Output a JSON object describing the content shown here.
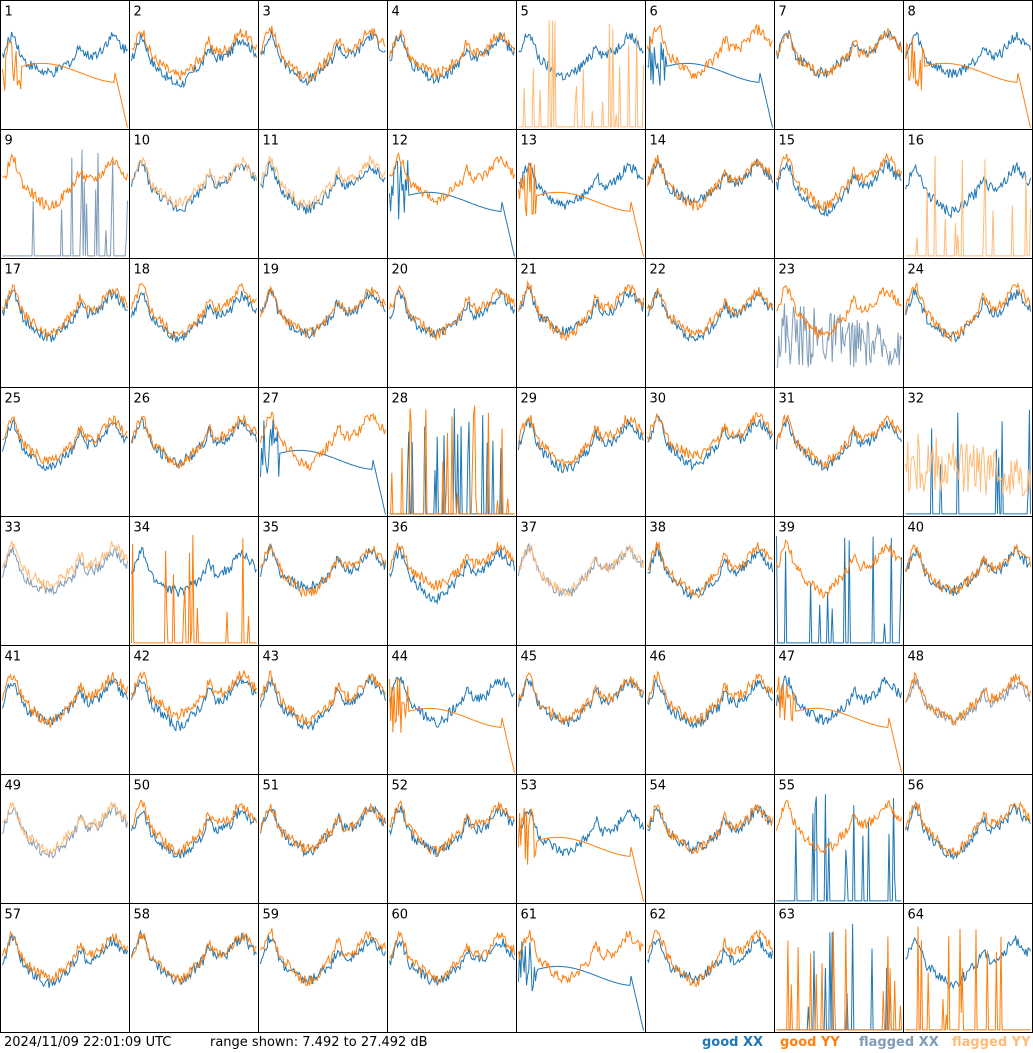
{
  "footer": {
    "timestamp": "2024/11/09 22:01:09 UTC",
    "range_text": "range shown: 7.492 to 27.492 dB"
  },
  "legend": {
    "good_xx": "good XX",
    "good_yy": "good YY",
    "flagged_xx": "flagged XX",
    "flagged_yy": "flagged YY"
  },
  "colors": {
    "good_xx": "#1f77b4",
    "good_yy": "#ff7f0e",
    "flagged_xx": "#7f9cb8",
    "flagged_yy": "#ffbb78"
  },
  "chart_data": {
    "type": "line",
    "grid": "8x8 small multiples",
    "y_range_db": [
      7.492,
      27.492
    ],
    "panels": [
      {
        "id": 1,
        "xx": "good",
        "yy": "good",
        "xx_shape": "normal",
        "yy_shape": "dropout"
      },
      {
        "id": 2,
        "xx": "good",
        "yy": "good",
        "xx_shape": "normal",
        "yy_shape": "normal"
      },
      {
        "id": 3,
        "xx": "good",
        "yy": "good",
        "xx_shape": "normal",
        "yy_shape": "normal"
      },
      {
        "id": 4,
        "xx": "good",
        "yy": "good",
        "xx_shape": "normal",
        "yy_shape": "normal"
      },
      {
        "id": 5,
        "xx": "good",
        "yy": "flagged",
        "xx_shape": "normal",
        "yy_shape": "spikes"
      },
      {
        "id": 6,
        "xx": "good",
        "yy": "good",
        "xx_shape": "dropout",
        "yy_shape": "normal"
      },
      {
        "id": 7,
        "xx": "good",
        "yy": "good",
        "xx_shape": "normal",
        "yy_shape": "normal"
      },
      {
        "id": 8,
        "xx": "good",
        "yy": "good",
        "xx_shape": "normal",
        "yy_shape": "dropout"
      },
      {
        "id": 9,
        "xx": "flagged",
        "yy": "good",
        "xx_shape": "spikes",
        "yy_shape": "normal"
      },
      {
        "id": 10,
        "xx": "good",
        "yy": "flagged",
        "xx_shape": "normal",
        "yy_shape": "normal"
      },
      {
        "id": 11,
        "xx": "good",
        "yy": "flagged",
        "xx_shape": "normal",
        "yy_shape": "normal"
      },
      {
        "id": 12,
        "xx": "good",
        "yy": "good",
        "xx_shape": "dropout",
        "yy_shape": "normal"
      },
      {
        "id": 13,
        "xx": "good",
        "yy": "good",
        "xx_shape": "normal",
        "yy_shape": "dropout"
      },
      {
        "id": 14,
        "xx": "good",
        "yy": "good",
        "xx_shape": "normal",
        "yy_shape": "normal"
      },
      {
        "id": 15,
        "xx": "good",
        "yy": "good",
        "xx_shape": "normal",
        "yy_shape": "normal"
      },
      {
        "id": 16,
        "xx": "good",
        "yy": "flagged",
        "xx_shape": "normal",
        "yy_shape": "spikes"
      },
      {
        "id": 17,
        "xx": "good",
        "yy": "good",
        "xx_shape": "normal",
        "yy_shape": "normal"
      },
      {
        "id": 18,
        "xx": "good",
        "yy": "good",
        "xx_shape": "normal",
        "yy_shape": "normal"
      },
      {
        "id": 19,
        "xx": "good",
        "yy": "good",
        "xx_shape": "normal",
        "yy_shape": "normal"
      },
      {
        "id": 20,
        "xx": "good",
        "yy": "good",
        "xx_shape": "normal",
        "yy_shape": "normal"
      },
      {
        "id": 21,
        "xx": "good",
        "yy": "good",
        "xx_shape": "normal",
        "yy_shape": "normal"
      },
      {
        "id": 22,
        "xx": "good",
        "yy": "good",
        "xx_shape": "normal",
        "yy_shape": "normal"
      },
      {
        "id": 23,
        "xx": "flagged",
        "yy": "good",
        "xx_shape": "noise",
        "yy_shape": "normal"
      },
      {
        "id": 24,
        "xx": "good",
        "yy": "good",
        "xx_shape": "normal",
        "yy_shape": "normal"
      },
      {
        "id": 25,
        "xx": "good",
        "yy": "good",
        "xx_shape": "normal",
        "yy_shape": "normal"
      },
      {
        "id": 26,
        "xx": "good",
        "yy": "good",
        "xx_shape": "normal",
        "yy_shape": "normal"
      },
      {
        "id": 27,
        "xx": "good",
        "yy": "good",
        "xx_shape": "dropout",
        "yy_shape": "normal"
      },
      {
        "id": 28,
        "xx": "good",
        "yy": "good",
        "xx_shape": "spikes",
        "yy_shape": "spikes"
      },
      {
        "id": 29,
        "xx": "good",
        "yy": "good",
        "xx_shape": "normal",
        "yy_shape": "normal"
      },
      {
        "id": 30,
        "xx": "good",
        "yy": "good",
        "xx_shape": "normal",
        "yy_shape": "normal"
      },
      {
        "id": 31,
        "xx": "good",
        "yy": "good",
        "xx_shape": "normal",
        "yy_shape": "normal"
      },
      {
        "id": 32,
        "xx": "good",
        "yy": "flagged",
        "xx_shape": "spikes",
        "yy_shape": "noise"
      },
      {
        "id": 33,
        "xx": "flagged",
        "yy": "flagged",
        "xx_shape": "normal",
        "yy_shape": "normal"
      },
      {
        "id": 34,
        "xx": "good",
        "yy": "good",
        "xx_shape": "normal",
        "yy_shape": "spikes"
      },
      {
        "id": 35,
        "xx": "good",
        "yy": "good",
        "xx_shape": "normal",
        "yy_shape": "normal"
      },
      {
        "id": 36,
        "xx": "good",
        "yy": "good",
        "xx_shape": "normal",
        "yy_shape": "normal"
      },
      {
        "id": 37,
        "xx": "flagged",
        "yy": "flagged",
        "xx_shape": "normal",
        "yy_shape": "normal"
      },
      {
        "id": 38,
        "xx": "good",
        "yy": "good",
        "xx_shape": "normal",
        "yy_shape": "normal"
      },
      {
        "id": 39,
        "xx": "good",
        "yy": "good",
        "xx_shape": "spikes",
        "yy_shape": "normal"
      },
      {
        "id": 40,
        "xx": "good",
        "yy": "good",
        "xx_shape": "normal",
        "yy_shape": "normal"
      },
      {
        "id": 41,
        "xx": "good",
        "yy": "good",
        "xx_shape": "normal",
        "yy_shape": "normal"
      },
      {
        "id": 42,
        "xx": "good",
        "yy": "good",
        "xx_shape": "normal",
        "yy_shape": "normal"
      },
      {
        "id": 43,
        "xx": "good",
        "yy": "good",
        "xx_shape": "normal",
        "yy_shape": "normal"
      },
      {
        "id": 44,
        "xx": "good",
        "yy": "good",
        "xx_shape": "normal",
        "yy_shape": "dropout"
      },
      {
        "id": 45,
        "xx": "good",
        "yy": "good",
        "xx_shape": "normal",
        "yy_shape": "normal"
      },
      {
        "id": 46,
        "xx": "good",
        "yy": "good",
        "xx_shape": "normal",
        "yy_shape": "normal"
      },
      {
        "id": 47,
        "xx": "good",
        "yy": "good",
        "xx_shape": "normal",
        "yy_shape": "dropout"
      },
      {
        "id": 48,
        "xx": "flagged",
        "yy": "good",
        "xx_shape": "normal",
        "yy_shape": "normal"
      },
      {
        "id": 49,
        "xx": "flagged",
        "yy": "flagged",
        "xx_shape": "normal",
        "yy_shape": "normal"
      },
      {
        "id": 50,
        "xx": "good",
        "yy": "good",
        "xx_shape": "normal",
        "yy_shape": "normal"
      },
      {
        "id": 51,
        "xx": "good",
        "yy": "good",
        "xx_shape": "normal",
        "yy_shape": "normal"
      },
      {
        "id": 52,
        "xx": "good",
        "yy": "good",
        "xx_shape": "normal",
        "yy_shape": "normal"
      },
      {
        "id": 53,
        "xx": "good",
        "yy": "good",
        "xx_shape": "normal",
        "yy_shape": "dropout"
      },
      {
        "id": 54,
        "xx": "good",
        "yy": "good",
        "xx_shape": "normal",
        "yy_shape": "normal"
      },
      {
        "id": 55,
        "xx": "good",
        "yy": "good",
        "xx_shape": "spikes",
        "yy_shape": "normal"
      },
      {
        "id": 56,
        "xx": "good",
        "yy": "good",
        "xx_shape": "normal",
        "yy_shape": "normal"
      },
      {
        "id": 57,
        "xx": "good",
        "yy": "good",
        "xx_shape": "normal",
        "yy_shape": "normal"
      },
      {
        "id": 58,
        "xx": "good",
        "yy": "good",
        "xx_shape": "normal",
        "yy_shape": "normal"
      },
      {
        "id": 59,
        "xx": "good",
        "yy": "good",
        "xx_shape": "normal",
        "yy_shape": "normal"
      },
      {
        "id": 60,
        "xx": "good",
        "yy": "good",
        "xx_shape": "normal",
        "yy_shape": "normal"
      },
      {
        "id": 61,
        "xx": "good",
        "yy": "good",
        "xx_shape": "dropout",
        "yy_shape": "normal"
      },
      {
        "id": 62,
        "xx": "good",
        "yy": "good",
        "xx_shape": "normal",
        "yy_shape": "normal"
      },
      {
        "id": 63,
        "xx": "good",
        "yy": "good",
        "xx_shape": "spikes",
        "yy_shape": "spikes"
      },
      {
        "id": 64,
        "xx": "good",
        "yy": "good",
        "xx_shape": "normal",
        "yy_shape": "spikes"
      }
    ]
  }
}
